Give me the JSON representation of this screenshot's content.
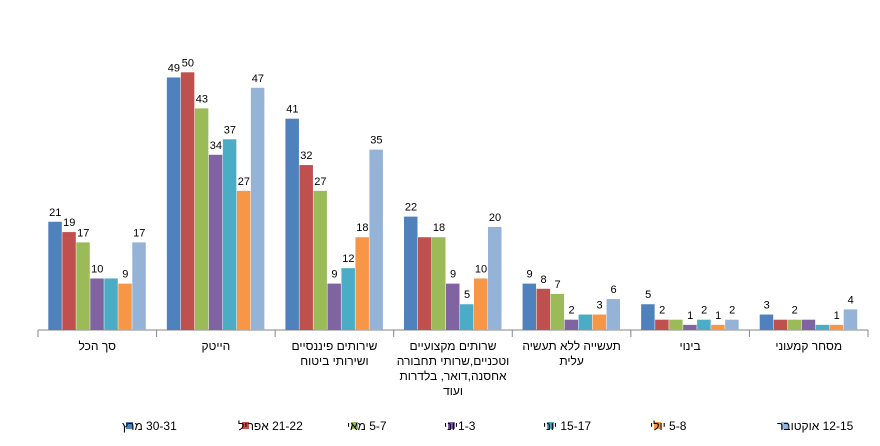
{
  "chart_data": {
    "type": "bar",
    "title": "",
    "xlabel": "",
    "ylabel": "",
    "ylim": [
      0,
      52
    ],
    "grid": false,
    "legend_position": "bottom",
    "categories": [
      [
        "סך הכל"
      ],
      [
        "הייטק"
      ],
      [
        "שירותים פיננסיים",
        "ושירותי ביטוח"
      ],
      [
        "שרותים מקצועיים",
        "וטכניים,שרותי תחבורה",
        "אחסנה,דואר, בלדרות",
        "ועוד"
      ],
      [
        "תעשייה ללא תעשיה",
        "עלית"
      ],
      [
        "בינוי"
      ],
      [
        "מסחר קמעוני"
      ]
    ],
    "series": [
      {
        "name": "30-31  מרץ",
        "color": "#4F81BD",
        "values": [
          21,
          49,
          41,
          22,
          9,
          5,
          3
        ]
      },
      {
        "name": "21-22 אפריל",
        "color": "#C0504D",
        "values": [
          19,
          50,
          32,
          18,
          8,
          2,
          2
        ]
      },
      {
        "name": "5-7 מאי",
        "color": "#9BBB59",
        "values": [
          17,
          43,
          27,
          18,
          7,
          2,
          2
        ]
      },
      {
        "name": "1-3יוני",
        "color": "#8064A2",
        "values": [
          10,
          34,
          9,
          9,
          2,
          1,
          2
        ]
      },
      {
        "name": "15-17 יוני",
        "color": "#4BACC6",
        "values": [
          10,
          37,
          12,
          5,
          3,
          2,
          1
        ]
      },
      {
        "name": "5-8 יולי",
        "color": "#F79646",
        "values": [
          9,
          27,
          18,
          10,
          3,
          1,
          1
        ]
      },
      {
        "name": "12-15 אוקטובר",
        "color": "#95B3D7",
        "values": [
          17,
          47,
          35,
          20,
          6,
          2,
          4
        ]
      }
    ],
    "data_labels": [
      [
        "21",
        "19",
        "17",
        "10",
        "",
        "9",
        "17"
      ],
      [
        "49",
        "50",
        "43",
        "34",
        "37",
        "27",
        "47"
      ],
      [
        "41",
        "32",
        "27",
        "9",
        "12",
        "18",
        "35"
      ],
      [
        "22",
        "",
        "18",
        "9",
        "5",
        "10",
        "20"
      ],
      [
        "9",
        "8",
        "7",
        "2",
        "",
        "3",
        "6"
      ],
      [
        "5",
        "2",
        "",
        "1",
        "2",
        "1",
        "2"
      ],
      [
        "3",
        "",
        "2",
        "",
        "",
        "1",
        "4"
      ]
    ]
  }
}
